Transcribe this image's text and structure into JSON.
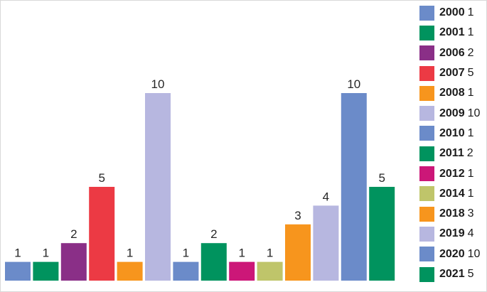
{
  "chart_data": {
    "type": "bar",
    "title": "",
    "xlabel": "",
    "ylabel": "",
    "ylim": [
      0,
      10
    ],
    "grid": false,
    "legend": "right",
    "groups": [
      {
        "bars": [
          {
            "year": "2000",
            "value": 1,
            "color": "#6b8bc9"
          },
          {
            "year": "2001",
            "value": 1,
            "color": "#00935e"
          },
          {
            "year": "2006",
            "value": 2,
            "color": "#8a2f87"
          },
          {
            "year": "2007",
            "value": 5,
            "color": "#ec3a44"
          },
          {
            "year": "2008",
            "value": 1,
            "color": "#f7951d"
          },
          {
            "year": "2009",
            "value": 10,
            "color": "#b7b7e0"
          }
        ]
      },
      {
        "bars": [
          {
            "year": "2010",
            "value": 1,
            "color": "#6b8bc9"
          },
          {
            "year": "2011",
            "value": 2,
            "color": "#00935e"
          },
          {
            "year": "2012",
            "value": 1,
            "color": "#cc1778"
          },
          {
            "year": "2014",
            "value": 1,
            "color": "#bfc56a"
          },
          {
            "year": "2018",
            "value": 3,
            "color": "#f7951d"
          },
          {
            "year": "2019",
            "value": 4,
            "color": "#b7b7e0"
          },
          {
            "year": "2020",
            "value": 10,
            "color": "#6b8bc9"
          },
          {
            "year": "2021",
            "value": 5,
            "color": "#00935e"
          }
        ]
      }
    ],
    "legend_items": [
      {
        "year": "2000",
        "value": "1",
        "color": "#6b8bc9"
      },
      {
        "year": "2001",
        "value": "1",
        "color": "#00935e"
      },
      {
        "year": "2006",
        "value": "2",
        "color": "#8a2f87"
      },
      {
        "year": "2007",
        "value": "5",
        "color": "#ec3a44"
      },
      {
        "year": "2008",
        "value": "1",
        "color": "#f7951d"
      },
      {
        "year": "2009",
        "value": "10",
        "color": "#b7b7e0"
      },
      {
        "year": "2010",
        "value": "1",
        "color": "#6b8bc9"
      },
      {
        "year": "2011",
        "value": "2",
        "color": "#00935e"
      },
      {
        "year": "2012",
        "value": "1",
        "color": "#cc1778"
      },
      {
        "year": "2014",
        "value": "1",
        "color": "#bfc56a"
      },
      {
        "year": "2018",
        "value": "3",
        "color": "#f7951d"
      },
      {
        "year": "2019",
        "value": "4",
        "color": "#b7b7e0"
      },
      {
        "year": "2020",
        "value": "10",
        "color": "#6b8bc9"
      },
      {
        "year": "2021",
        "value": "5",
        "color": "#00935e"
      }
    ]
  }
}
